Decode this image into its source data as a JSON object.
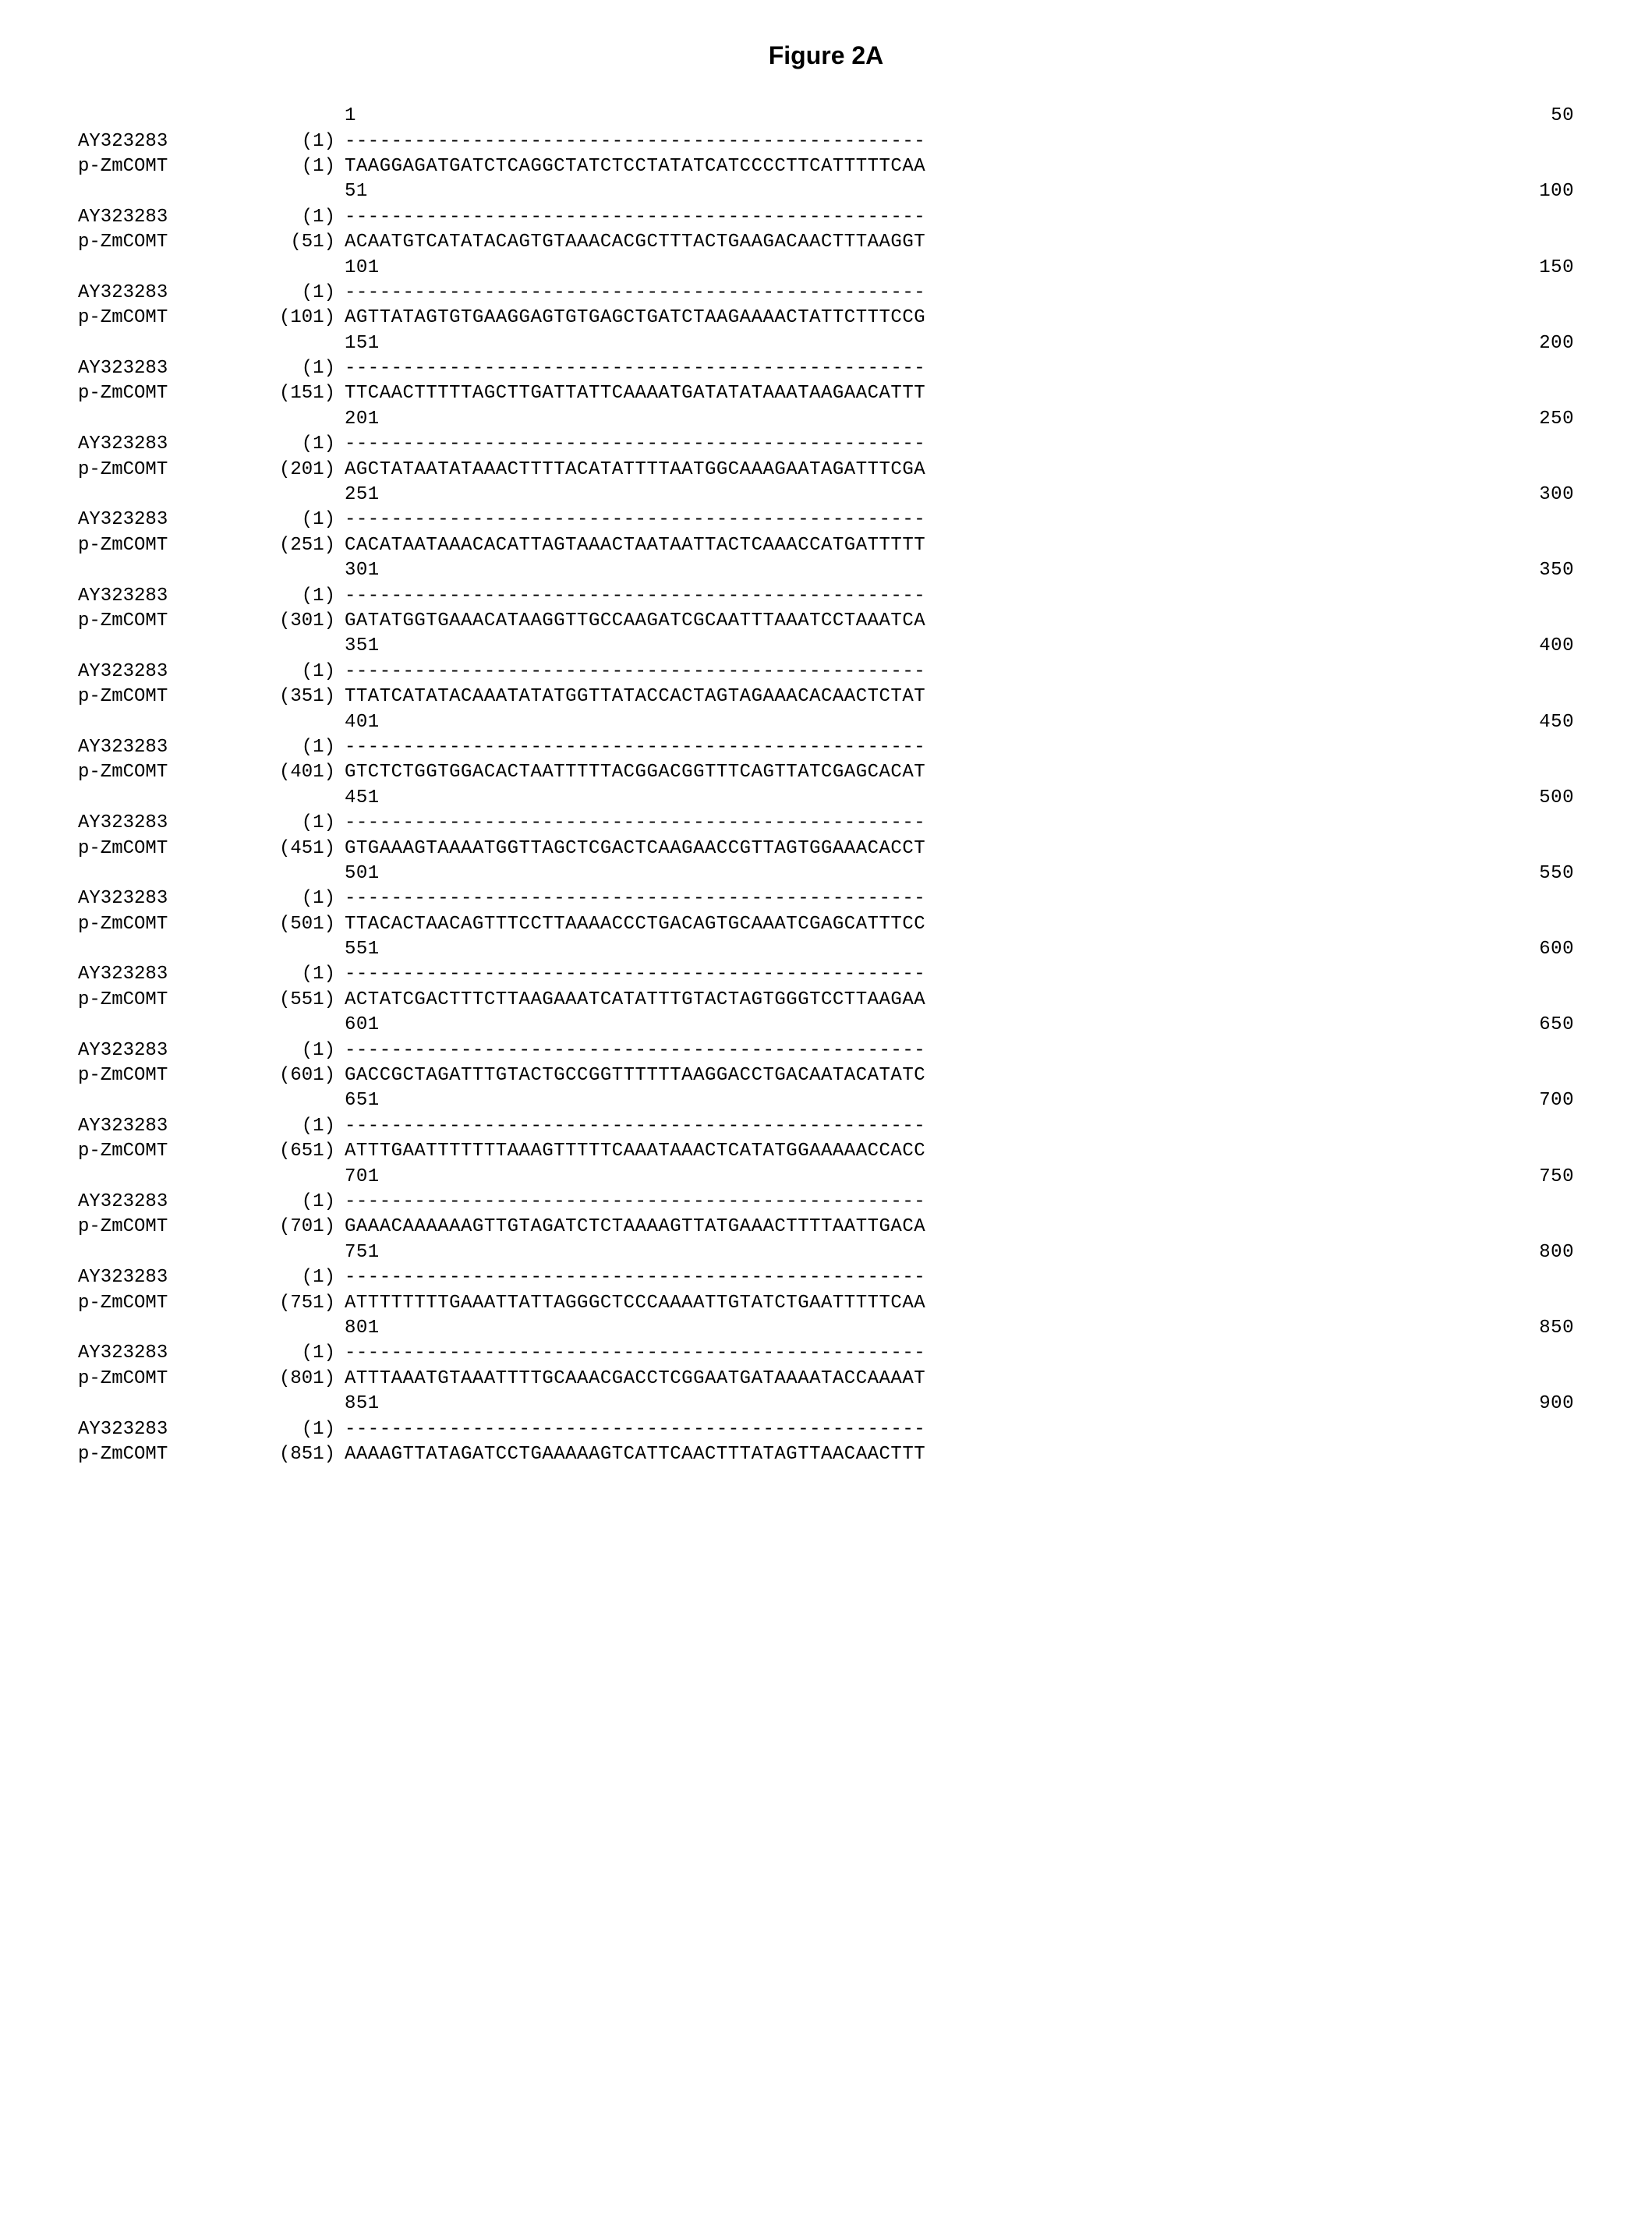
{
  "title": "Figure 2A",
  "names": {
    "a": "AY323283",
    "b": "p-ZmCOMT"
  },
  "dashes": "--------------------------------------------------",
  "blocks": [
    {
      "start": "1",
      "end": "50",
      "a_pos": "(1)",
      "b_pos": "(1)",
      "b_seq": "TAAGGAGATGATCTCAGGCTATCTCCTATATCATCCCCTTCATTTTTCAA"
    },
    {
      "start": "51",
      "end": "100",
      "a_pos": "(1)",
      "b_pos": "(51)",
      "b_seq": "ACAATGTCATATACAGTGTAAACACGCTTTACTGAAGACAACTTTAAGGT"
    },
    {
      "start": "101",
      "end": "150",
      "a_pos": "(1)",
      "b_pos": "(101)",
      "b_seq": "AGTTATAGTGTGAAGGAGTGTGAGCTGATCTAAGAAAACTATTCTTTCCG"
    },
    {
      "start": "151",
      "end": "200",
      "a_pos": "(1)",
      "b_pos": "(151)",
      "b_seq": "TTCAACTTTTTAGCTTGATTATTCAAAATGATATATAAATAAGAACATTT"
    },
    {
      "start": "201",
      "end": "250",
      "a_pos": "(1)",
      "b_pos": "(201)",
      "b_seq": "AGCTATAATATAAACTTTTACATATTTTAATGGCAAAGAATAGATTTCGA"
    },
    {
      "start": "251",
      "end": "300",
      "a_pos": "(1)",
      "b_pos": "(251)",
      "b_seq": "CACATAATAAACACATTAGTAAACTAATAATTACTCAAACCATGATTTTT"
    },
    {
      "start": "301",
      "end": "350",
      "a_pos": "(1)",
      "b_pos": "(301)",
      "b_seq": "GATATGGTGAAACATAAGGTTGCCAAGATCGCAATTTAAATCCTAAATCA"
    },
    {
      "start": "351",
      "end": "400",
      "a_pos": "(1)",
      "b_pos": "(351)",
      "b_seq": "TTATCATATACAAATATATGGTTATACCACTAGTAGAAACACAACTCTAT"
    },
    {
      "start": "401",
      "end": "450",
      "a_pos": "(1)",
      "b_pos": "(401)",
      "b_seq": "GTCTCTGGTGGACACTAATTTTTACGGACGGTTTCAGTTATCGAGCACAT"
    },
    {
      "start": "451",
      "end": "500",
      "a_pos": "(1)",
      "b_pos": "(451)",
      "b_seq": "GTGAAAGTAAAATGGTTAGCTCGACTCAAGAACCGTTAGTGGAAACACCT"
    },
    {
      "start": "501",
      "end": "550",
      "a_pos": "(1)",
      "b_pos": "(501)",
      "b_seq": "TTACACTAACAGTTTCCTTAAAACCCTGACAGTGCAAATCGAGCATTTCC"
    },
    {
      "start": "551",
      "end": "600",
      "a_pos": "(1)",
      "b_pos": "(551)",
      "b_seq": "ACTATCGACTTTCTTAAGAAATCATATTTGTACTAGTGGGTCCTTAAGAA"
    },
    {
      "start": "601",
      "end": "650",
      "a_pos": "(1)",
      "b_pos": "(601)",
      "b_seq": "GACCGCTAGATTTGTACTGCCGGTTTTTTAAGGACCTGACAATACATATC"
    },
    {
      "start": "651",
      "end": "700",
      "a_pos": "(1)",
      "b_pos": "(651)",
      "b_seq": "ATTTGAATTTTTTTAAAGTTTTTCAAATAAACTCATATGGAAAAACCACC"
    },
    {
      "start": "701",
      "end": "750",
      "a_pos": "(1)",
      "b_pos": "(701)",
      "b_seq": "GAAACAAAAAAGTTGTAGATCTCTAAAAGTTATGAAACTTTTAATTGACA"
    },
    {
      "start": "751",
      "end": "800",
      "a_pos": "(1)",
      "b_pos": "(751)",
      "b_seq": "ATTTTTTTTGAAATTATTAGGGCTCCCAAAATTGTATCTGAATTTTTCAA"
    },
    {
      "start": "801",
      "end": "850",
      "a_pos": "(1)",
      "b_pos": "(801)",
      "b_seq": "ATTTAAATGTAAATTTTGCAAACGACCTCGGAATGATAAAATACCAAAAT"
    },
    {
      "start": "851",
      "end": "900",
      "a_pos": "(1)",
      "b_pos": "(851)",
      "b_seq": "AAAAGTTATAGATCCTGAAAAAGTCATTCAACTTTATAGTTAACAACTTT"
    }
  ]
}
